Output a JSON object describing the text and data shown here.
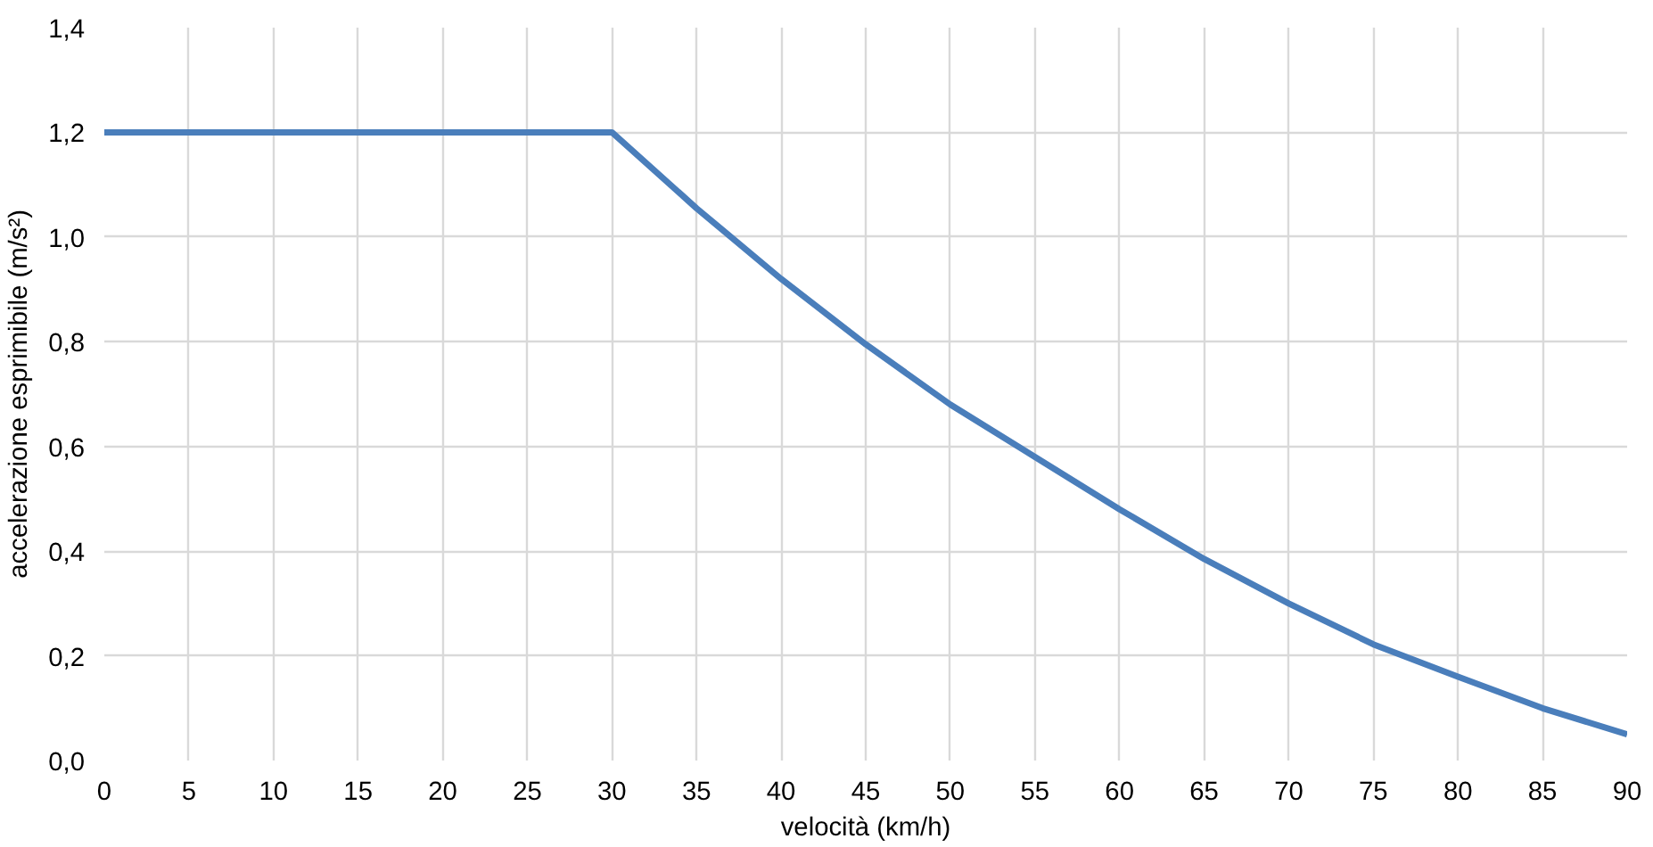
{
  "chart_data": {
    "type": "line",
    "xlabel": "velocità (km/h)",
    "ylabel": "accelerazione esprimibile (m/s²)",
    "x": [
      0,
      5,
      10,
      15,
      20,
      25,
      30,
      35,
      40,
      45,
      50,
      55,
      60,
      65,
      70,
      75,
      80,
      85,
      90
    ],
    "series": [
      {
        "color": "#4a7ebb",
        "values": [
          1.2,
          1.2,
          1.2,
          1.2,
          1.2,
          1.2,
          1.2,
          1.055,
          0.92,
          0.795,
          0.68,
          0.58,
          0.48,
          0.385,
          0.3,
          0.222,
          0.16,
          0.1,
          0.05
        ]
      }
    ],
    "xlim": [
      0,
      90
    ],
    "xticks": [
      0,
      5,
      10,
      15,
      20,
      25,
      30,
      35,
      40,
      45,
      50,
      55,
      60,
      65,
      70,
      75,
      80,
      85,
      90
    ],
    "ylim": [
      0,
      1.4
    ],
    "yticks": [
      {
        "value": 0,
        "label": "0,0"
      },
      {
        "value": 0.2,
        "label": "0,2"
      },
      {
        "value": 0.4,
        "label": "0,4"
      },
      {
        "value": 0.6,
        "label": "0,6"
      },
      {
        "value": 0.8,
        "label": "0,8"
      },
      {
        "value": 1.0,
        "label": "1,0"
      },
      {
        "value": 1.2,
        "label": "1,2"
      },
      {
        "value": 1.4,
        "label": "1,4"
      }
    ],
    "grid": true,
    "marker": "none",
    "line_style": "solid"
  }
}
